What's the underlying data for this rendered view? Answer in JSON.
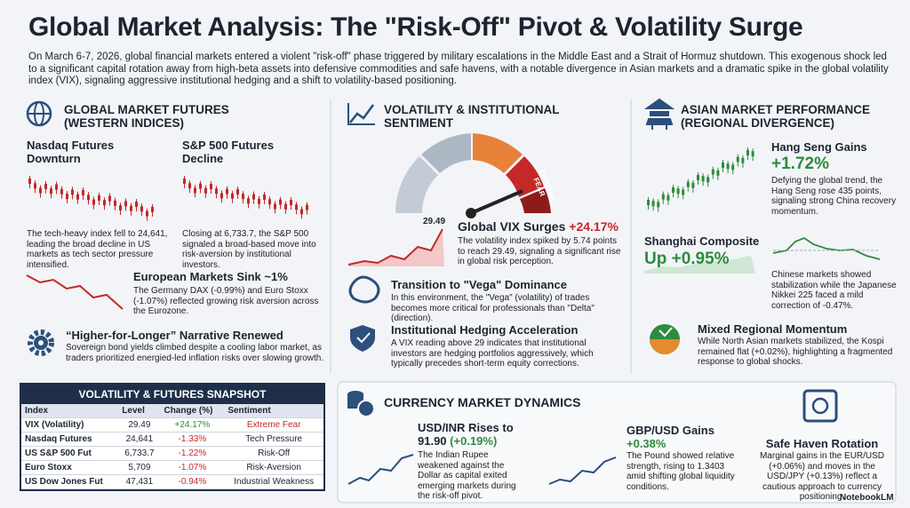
{
  "header": {
    "title": "Global Market Analysis: The \"Risk-Off\" Pivot & Volatility Surge",
    "intro": "On March 6-7, 2026, global financial markets entered a violent \"risk-off\" phase triggered by military escalations in the Middle East and a Strait of Hormuz shutdown. This exogenous shock led to a significant capital rotation away from high-beta assets into defensive commodities and safe havens, with a notable divergence in Asian markets and a dramatic spike in the global volatility index (VIX), signaling aggressive institutional hedging and a shift to volatility-based positioning."
  },
  "western": {
    "heading": "GLOBAL MARKET FUTURES (WESTERN INDICES)",
    "nasdaq": {
      "title": "Nasdaq Futures Downturn",
      "body": "The tech-heavy index fell to 24,641, leading the broad decline in US markets as tech sector pressure intensified."
    },
    "sp500": {
      "title": "S&P 500 Futures Decline",
      "body": "Closing at 6,733.7, the S&P 500 signaled a broad-based move into risk-aversion by institutional investors."
    },
    "europe": {
      "title": "European Markets Sink ~1%",
      "body": "The Germany DAX (-0.99%) and Euro Stoxx (-1.07%) reflected growing risk aversion across the Eurozone."
    },
    "higher": {
      "title": "“Higher-for-Longer” Narrative Renewed",
      "body": "Sovereign bond yields climbed despite a cooling labor market, as traders prioritized energied-led inflation risks over slowing growth."
    }
  },
  "table": {
    "title": "VOLATILITY & FUTURES SNAPSHOT",
    "columns": [
      "Index",
      "Level",
      "Change (%)",
      "Sentiment"
    ],
    "rows": [
      [
        "VIX (Volatility)",
        "29.49",
        "+24.17%",
        "Extreme Fear"
      ],
      [
        "Nasdaq Futures",
        "24,641",
        "-1.33%",
        "Tech Pressure"
      ],
      [
        "US S&P 500 Fut",
        "6,733.7",
        "-1.22%",
        "Risk-Off"
      ],
      [
        "Euro Stoxx",
        "5,709",
        "-1.07%",
        "Risk-Aversion"
      ],
      [
        "US Dow Jones Fut",
        "47,431",
        "-0.94%",
        "Industrial Weakness"
      ]
    ]
  },
  "volatility": {
    "heading": "VOLATILITY & INSTITUTIONAL SENTIMENT",
    "gauge_label": "EXTREME FEAR",
    "chart_label": "29.49",
    "vix": {
      "title": "Global VIX Surges",
      "change": "+24.17%",
      "body": "The volatility index spiked by 5.74 points to reach 29.49, signaling a significant rise in global risk perception."
    },
    "vega": {
      "title": "Transition to \"Vega\" Dominance",
      "body": "In this environment, the \"Vega\" (volatility) of trades becomes more critical for professionals than \"Delta\" (direction)."
    },
    "hedging": {
      "title": "Institutional Hedging Acceleration",
      "body": "A VIX reading above 29 indicates that institutional investors are hedging portfolios aggressively, which typically precedes short-term equity corrections."
    }
  },
  "asia": {
    "heading": "ASIAN MARKET PERFORMANCE (REGIONAL DIVERGENCE)",
    "hangseng": {
      "title": "Hang Seng Gains",
      "value": "+1.72%",
      "body": "Defying the global trend, the Hang Seng rose 435 points, signaling strong China recovery momentum."
    },
    "shanghai": {
      "title": "Shanghai Composite",
      "value": "Up +0.95%",
      "body": "Chinese markets showed stabilization while the Japanese Nikkei 225 faced a mild correction of -0.47%."
    },
    "mixed": {
      "title": "Mixed Regional Momentum",
      "body": "While North Asian markets stabilized, the Kospi remained flat (+0.02%), highlighting a fragmented response to global shocks."
    }
  },
  "currency": {
    "heading": "CURRENCY MARKET DYNAMICS",
    "usdinr": {
      "title": "USD/INR Rises to 91.90",
      "change": "(+0.19%)",
      "body": "The Indian Rupee weakened against the Dollar as capital exited emerging markets during the risk-off pivot."
    },
    "gbpusd": {
      "title": "GBP/USD Gains",
      "value": "+0.38%",
      "body": "The Pound showed relative strength, rising to 1.3403 amid shifting global liquidity conditions."
    },
    "safe": {
      "title": "Safe Haven Rotation",
      "body": "Marginal gains in the EUR/USD (+0.06%) and moves in the USD/JPY (+0.13%) reflect a cautious approach to currency positioning."
    }
  },
  "footer": {
    "brand": "NotebookLM"
  }
}
